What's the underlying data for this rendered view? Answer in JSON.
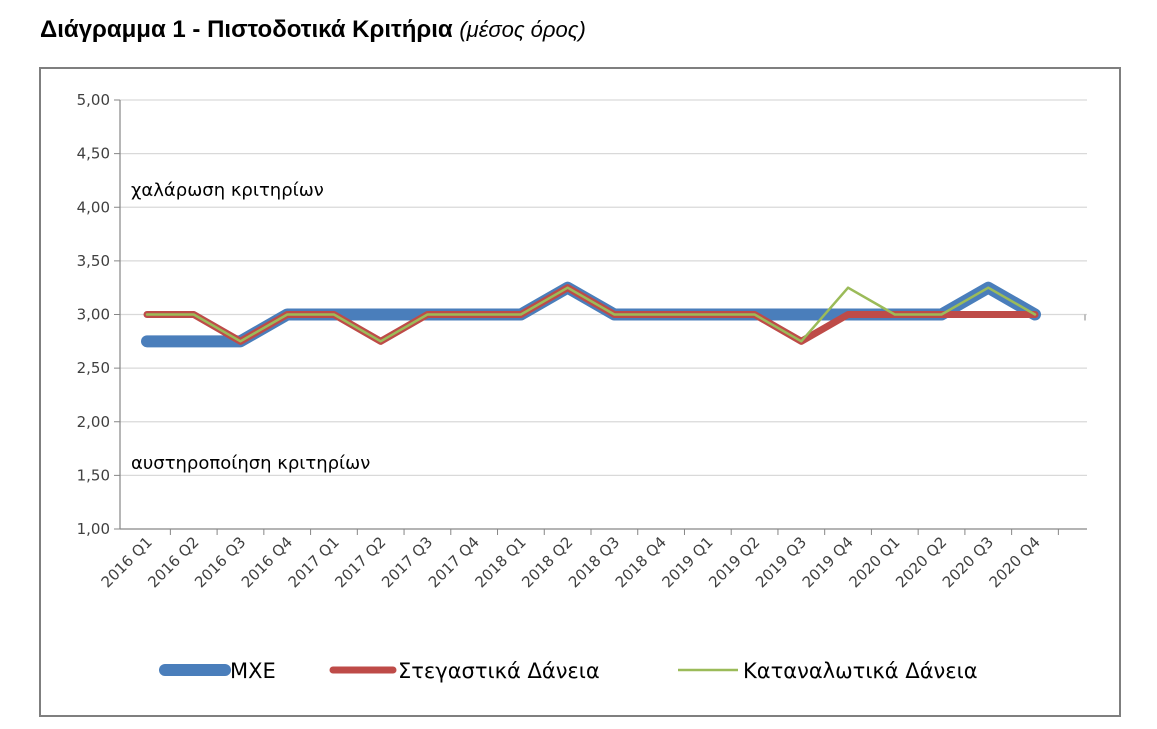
{
  "chart_data": {
    "type": "line",
    "title": "Διάγραμμα 1 - Πιστοδοτικά Κριτήρια",
    "subtitle": "(μέσος όρος)",
    "xlabel": "",
    "ylabel": "",
    "ylim": [
      1.0,
      5.0
    ],
    "yticks": [
      "1,00",
      "1,50",
      "2,00",
      "2,50",
      "3,00",
      "3,50",
      "4,00",
      "4,50",
      "5,00"
    ],
    "grid": true,
    "legend_position": "bottom",
    "categories": [
      "2016 Q1",
      "2016 Q2",
      "2016 Q3",
      "2016 Q4",
      "2017 Q1",
      "2017 Q2",
      "2017 Q3",
      "2017 Q4",
      "2018 Q1",
      "2018 Q2",
      "2018 Q3",
      "2018 Q4",
      "2019 Q1",
      "2019 Q2",
      "2019 Q3",
      "2019 Q4",
      "2020 Q1",
      "2020 Q2",
      "2020 Q3",
      "2020 Q4"
    ],
    "series": [
      {
        "name": "ΜΧΕ",
        "color": "#4a7ebb",
        "values": [
          2.75,
          2.75,
          2.75,
          3.0,
          3.0,
          3.0,
          3.0,
          3.0,
          3.0,
          3.25,
          3.0,
          3.0,
          3.0,
          3.0,
          3.0,
          3.0,
          3.0,
          3.0,
          3.25,
          3.0
        ]
      },
      {
        "name": "Στεγαστικά Δάνεια",
        "color": "#be4b48",
        "values": [
          3.0,
          3.0,
          2.75,
          3.0,
          3.0,
          2.75,
          3.0,
          3.0,
          3.0,
          3.25,
          3.0,
          3.0,
          3.0,
          3.0,
          2.75,
          3.0,
          3.0,
          3.0,
          3.0,
          3.0
        ]
      },
      {
        "name": "Καταναλωτικά Δάνεια",
        "color": "#9bbb59",
        "values": [
          3.0,
          3.0,
          2.75,
          3.0,
          3.0,
          2.75,
          3.0,
          3.0,
          3.0,
          3.25,
          3.0,
          3.0,
          3.0,
          3.0,
          2.75,
          3.25,
          3.0,
          3.0,
          3.25,
          3.0
        ]
      }
    ],
    "annotations": [
      "χαλάρωση κριτηρίων",
      "αυστηροποίηση κριτηρίων"
    ]
  }
}
